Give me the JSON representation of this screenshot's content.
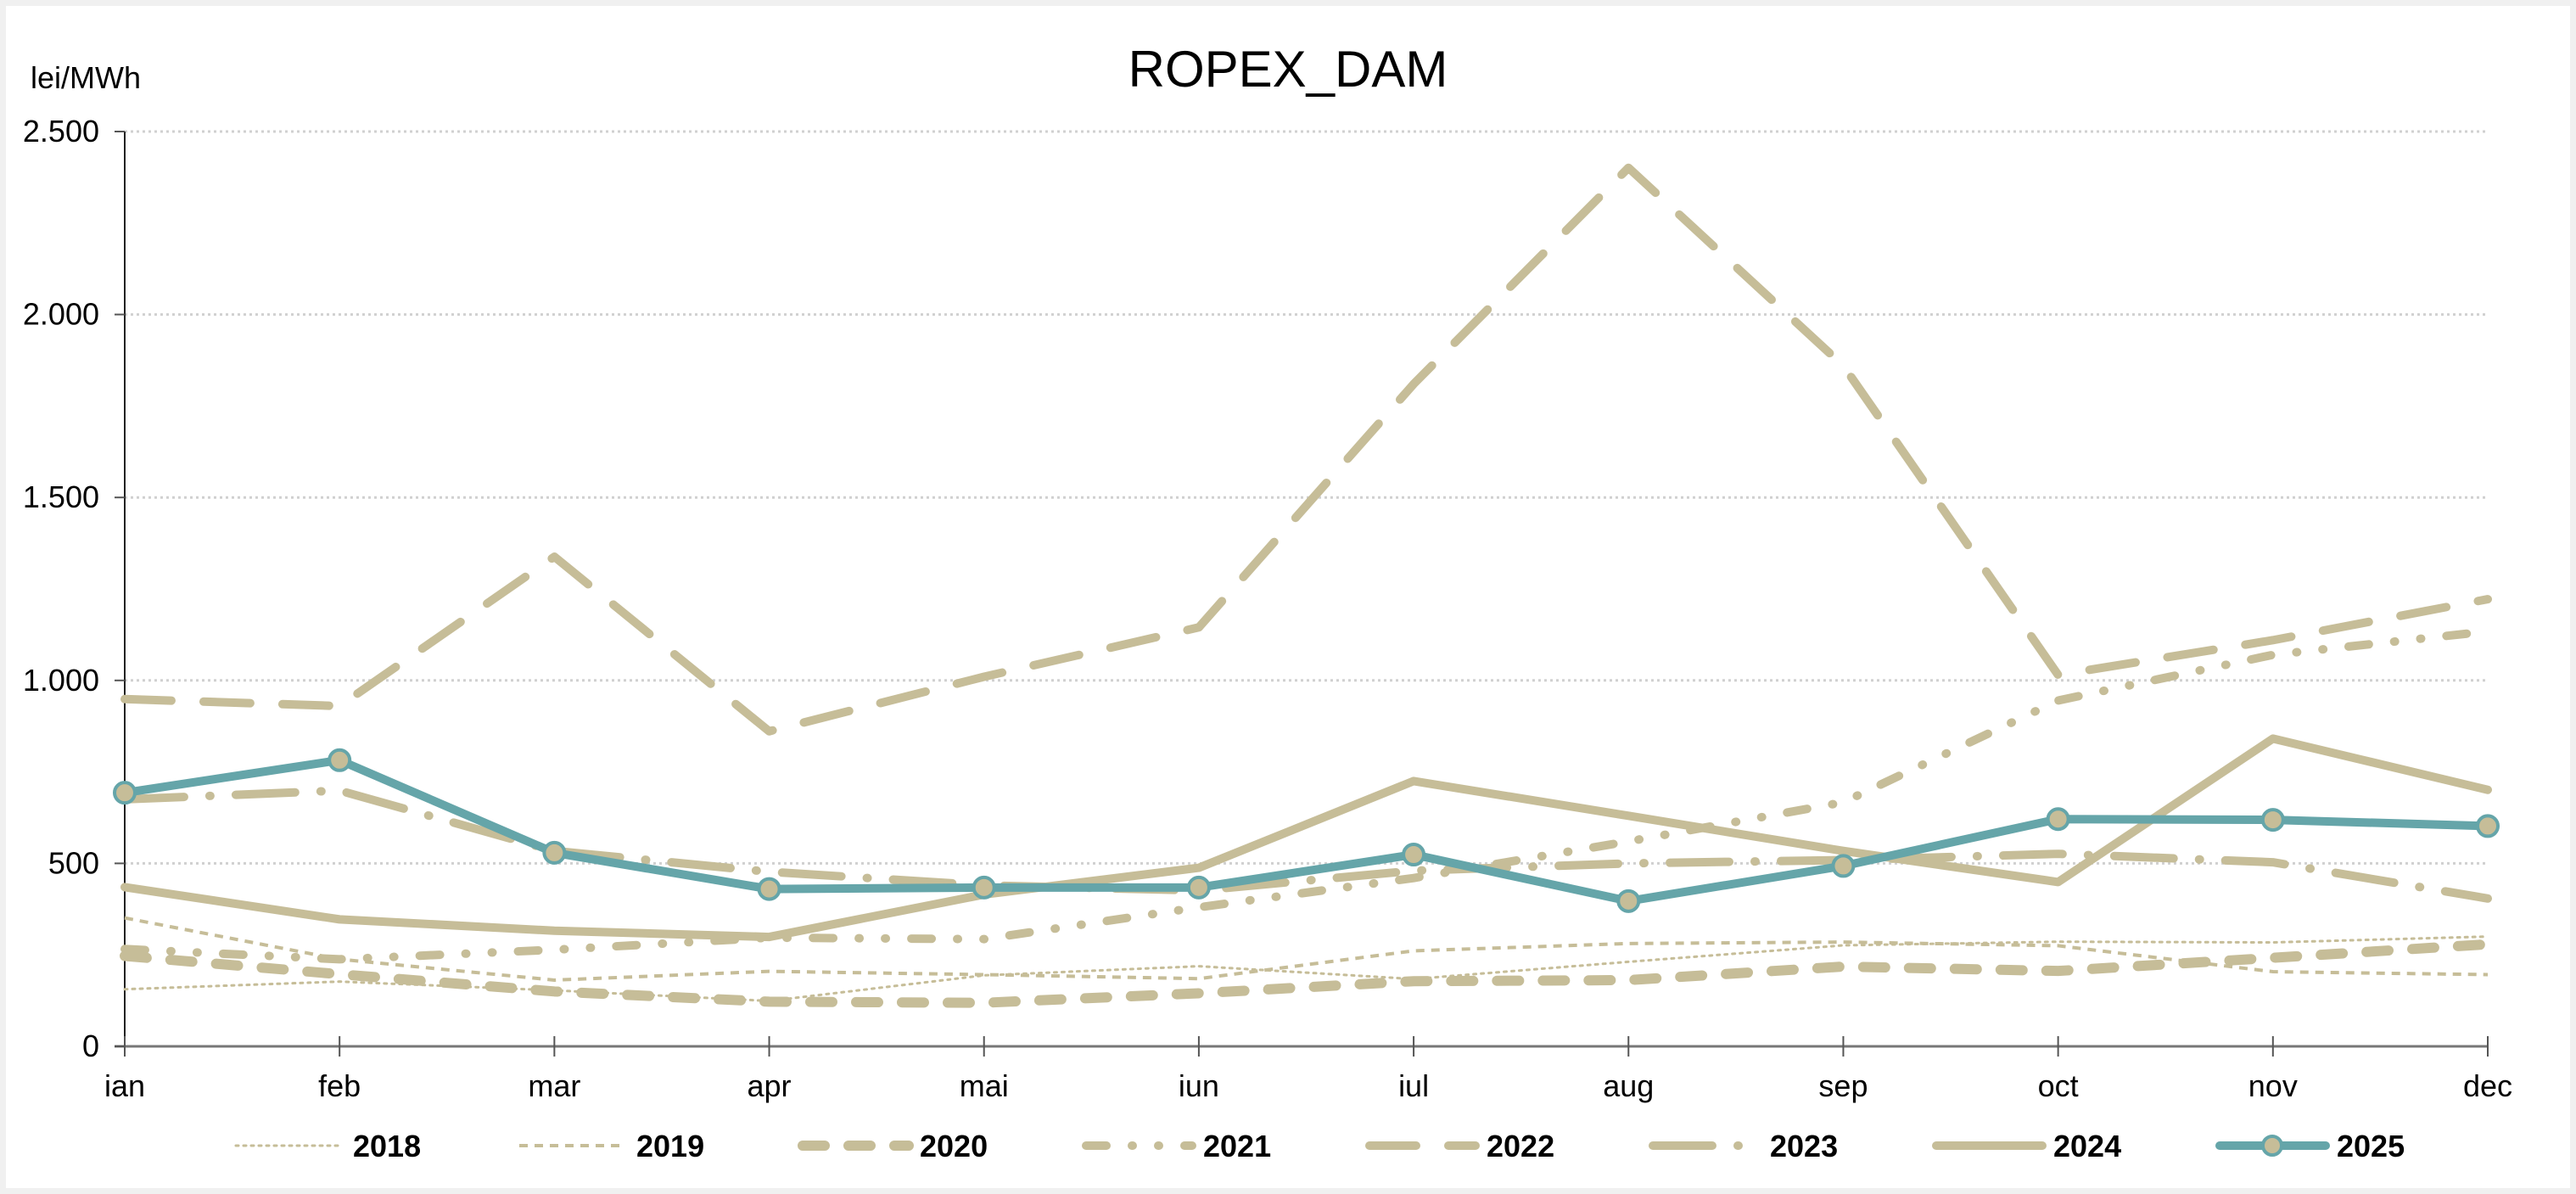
{
  "chart_data": {
    "type": "line",
    "title": "ROPEX_DAM",
    "ylabel": "lei/MWh",
    "xlabel": "",
    "ylim": [
      0,
      2500
    ],
    "yticks": [
      0,
      500,
      1000,
      1500,
      2000,
      2500
    ],
    "ytick_labels": [
      "0",
      "500",
      "1.000",
      "1.500",
      "2.000",
      "2.500"
    ],
    "grid": true,
    "legend_position": "bottom",
    "categories": [
      "ian",
      "feb",
      "mar",
      "apr",
      "mai",
      "iun",
      "iul",
      "aug",
      "sep",
      "oct",
      "nov",
      "dec"
    ],
    "series": [
      {
        "name": "2018",
        "style": "dotted",
        "color": "#c6bd98",
        "values": [
          156,
          177,
          153,
          124,
          194,
          219,
          184,
          231,
          276,
          286,
          284,
          300
        ]
      },
      {
        "name": "2019",
        "style": "short-dash",
        "color": "#c6bd98",
        "values": [
          351,
          238,
          181,
          205,
          196,
          185,
          261,
          281,
          285,
          275,
          204,
          196
        ]
      },
      {
        "name": "2020",
        "style": "dash",
        "color": "#c6bd98",
        "values": [
          247,
          197,
          150,
          122,
          119,
          145,
          178,
          181,
          218,
          206,
          242,
          279
        ]
      },
      {
        "name": "2021",
        "style": "dash-dot-dot",
        "color": "#c6bd98",
        "values": [
          266,
          238,
          264,
          297,
          293,
          380,
          460,
          560,
          667,
          945,
          1070,
          1134
        ]
      },
      {
        "name": "2022",
        "style": "long-dash",
        "color": "#c6bd98",
        "values": [
          949,
          930,
          1338,
          861,
          1010,
          1145,
          1810,
          2401,
          1860,
          1015,
          1110,
          1222
        ]
      },
      {
        "name": "2023",
        "style": "long-dash-dot",
        "color": "#c6bd98",
        "values": [
          675,
          699,
          534,
          477,
          440,
          426,
          480,
          500,
          509,
          526,
          503,
          404
        ]
      },
      {
        "name": "2024",
        "style": "solid",
        "color": "#c6bd98",
        "values": [
          435,
          347,
          316,
          299,
          415,
          488,
          725,
          630,
          534,
          449,
          841,
          701
        ]
      },
      {
        "name": "2025",
        "style": "solid-markers",
        "color": "#65a5a9",
        "marker_fill": "#c6bd98",
        "values": [
          693,
          782,
          529,
          430,
          434,
          434,
          524,
          397,
          493,
          621,
          619,
          602
        ]
      }
    ]
  }
}
